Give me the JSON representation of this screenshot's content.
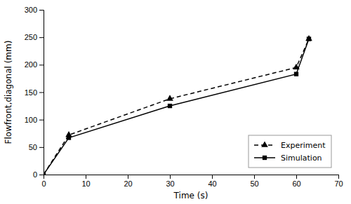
{
  "chart_data": {
    "type": "line",
    "x_label": "Time (s)",
    "y_label": "Flowfront,diagonal (mm)",
    "x": [
      0,
      6,
      30,
      60,
      63
    ],
    "series": [
      {
        "name": "Experiment",
        "color": "#000000",
        "marker": "triangle",
        "line_style": "dashed",
        "values": [
          0,
          72,
          138,
          195,
          247
        ]
      },
      {
        "name": "Simulation",
        "color": "#000000",
        "marker": "square",
        "line_style": "solid",
        "values": [
          0,
          67,
          125,
          183,
          247
        ]
      }
    ],
    "xlim": [
      0,
      70
    ],
    "ylim": [
      0,
      300
    ],
    "xticks": [
      0,
      10,
      20,
      30,
      40,
      50,
      60,
      70
    ],
    "yticks": [
      0,
      50,
      100,
      150,
      200,
      250,
      300
    ],
    "grid": false,
    "legend": "lower right"
  }
}
